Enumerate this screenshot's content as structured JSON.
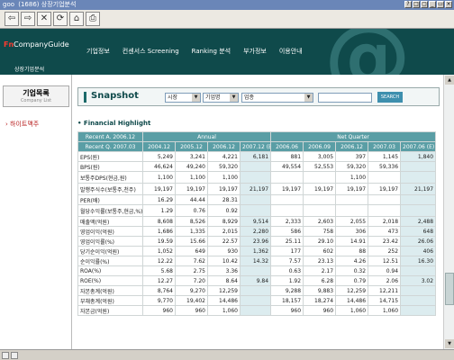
{
  "window": {
    "title_icon": "goo",
    "title": "(1686) 상장기업분석",
    "buttons": [
      "?",
      "□",
      "▢",
      "_",
      "▭",
      "×"
    ]
  },
  "toolbar": {
    "icons": [
      "back-icon",
      "forward-icon",
      "stop-icon",
      "refresh-icon",
      "home-icon",
      "print-icon"
    ],
    "glyphs": [
      "⇦",
      "⇨",
      "✕",
      "⟳",
      "⌂",
      "⎙"
    ]
  },
  "header": {
    "logo_fn": "Fn",
    "logo_rest": "CompanyGuide",
    "sublogo": "상장기업분석",
    "nav": [
      "기업정보",
      "컨센서스 Screening",
      "Ranking 분석",
      "부가정보",
      "이용안내"
    ]
  },
  "sidebar": {
    "title": "기업목록",
    "subtitle": "Company List",
    "items": [
      "하이트맥주"
    ]
  },
  "snapshot": {
    "title": "Snapshot",
    "select_market": "시장",
    "select_company": "기업명",
    "select_industry": "업종",
    "search_button": "SEARCH"
  },
  "section_title": "Financial Highlight",
  "table": {
    "recent_a": "Recent A. 2006.12",
    "annual": "Annual",
    "net_quarter": "Net Quarter",
    "recent_q": "Recent Q. 2007.03",
    "columns": [
      "2004.12",
      "2005.12",
      "2006.12",
      "2007.12 (E)",
      "2006.06",
      "2006.09",
      "2006.12",
      "2007.03",
      "2007.06 (E)"
    ],
    "rows": [
      {
        "label": "EPS(원)",
        "values": [
          "5,249",
          "3,241",
          "4,221",
          "6,181",
          "881",
          "3,005",
          "397",
          "1,145",
          "1,840"
        ]
      },
      {
        "label": "BPS(원)",
        "values": [
          "46,624",
          "49,240",
          "59,320",
          "",
          "49,554",
          "52,553",
          "59,320",
          "59,336",
          ""
        ]
      },
      {
        "label": "보통주DPS(현금,원)",
        "values": [
          "1,100",
          "1,100",
          "1,100",
          "",
          "",
          "",
          "1,100",
          "",
          ""
        ]
      },
      {
        "label": "발행주식수(보통주,천주)",
        "values": [
          "19,197",
          "19,197",
          "19,197",
          "21,197",
          "19,197",
          "19,197",
          "19,197",
          "19,197",
          "21,197"
        ]
      },
      {
        "label": "PER(배)",
        "values": [
          "16.29",
          "44.44",
          "28.31",
          "",
          "",
          "",
          "",
          "",
          ""
        ]
      },
      {
        "label": "월당수익률(보통주,현금,%)",
        "values": [
          "1.29",
          "0.76",
          "0.92",
          "",
          "",
          "",
          "",
          "",
          ""
        ]
      },
      {
        "label": "매출액(억원)",
        "values": [
          "8,608",
          "8,526",
          "8,929",
          "9,514",
          "2,333",
          "2,603",
          "2,055",
          "2,018",
          "2,488"
        ]
      },
      {
        "label": "영업이익(억원)",
        "values": [
          "1,686",
          "1,335",
          "2,015",
          "2,280",
          "586",
          "758",
          "306",
          "473",
          "648"
        ]
      },
      {
        "label": "영업이익률(%)",
        "values": [
          "19.59",
          "15.66",
          "22.57",
          "23.96",
          "25.11",
          "29.10",
          "14.91",
          "23.42",
          "26.06"
        ]
      },
      {
        "label": "당기순이익(억원)",
        "values": [
          "1,052",
          "649",
          "930",
          "1,362",
          "177",
          "602",
          "88",
          "252",
          "406"
        ]
      },
      {
        "label": "순이익률(%)",
        "values": [
          "12.22",
          "7.62",
          "10.42",
          "14.32",
          "7.57",
          "23.13",
          "4.26",
          "12.51",
          "16.30"
        ]
      },
      {
        "label": "ROA(%)",
        "values": [
          "5.68",
          "2.75",
          "3.36",
          "",
          "0.63",
          "2.17",
          "0.32",
          "0.94",
          ""
        ]
      },
      {
        "label": "ROE(%)",
        "values": [
          "12.27",
          "7.20",
          "8.64",
          "9.84",
          "1.92",
          "6.28",
          "0.79",
          "2.06",
          "3.02"
        ]
      },
      {
        "label": "자본총계(억원)",
        "values": [
          "8,764",
          "9,270",
          "12,259",
          "",
          "9,288",
          "9,883",
          "12,259",
          "12,211",
          ""
        ]
      },
      {
        "label": "부채총계(억원)",
        "values": [
          "9,770",
          "19,402",
          "14,486",
          "",
          "18,157",
          "18,274",
          "14,486",
          "14,715",
          ""
        ]
      },
      {
        "label": "자본금(억원)",
        "values": [
          "960",
          "960",
          "1,060",
          "",
          "960",
          "960",
          "1,060",
          "1,060",
          ""
        ]
      }
    ]
  },
  "colors": {
    "header_bg": "#0f4a4b",
    "table_header": "#5a9ea5",
    "estimate_bg": "#dcecef",
    "accent_red": "#ff3b2f"
  }
}
